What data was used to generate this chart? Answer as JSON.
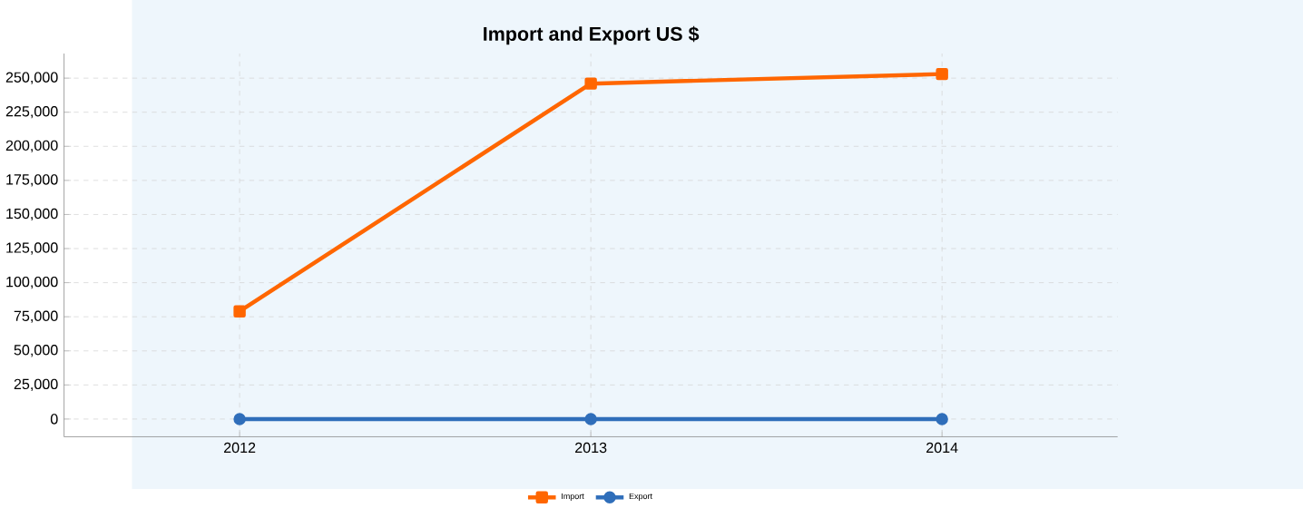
{
  "chart_data": {
    "type": "line",
    "title": "Import and Export  US $",
    "categories": [
      "2012",
      "2013",
      "2014"
    ],
    "series": [
      {
        "name": "Import",
        "color": "#ff6600",
        "marker": "square",
        "values": [
          79000,
          246000,
          253000
        ]
      },
      {
        "name": "Export",
        "color": "#2f6eba",
        "marker": "circle",
        "values": [
          0,
          0,
          0
        ]
      }
    ],
    "ylim": [
      -13000,
      268000
    ],
    "yticks": [
      {
        "value": 0,
        "label": "0"
      },
      {
        "value": 25000,
        "label": "25,000"
      },
      {
        "value": 50000,
        "label": "50,000"
      },
      {
        "value": 75000,
        "label": "75,000"
      },
      {
        "value": 100000,
        "label": "100,000"
      },
      {
        "value": 125000,
        "label": "125,000"
      },
      {
        "value": 150000,
        "label": "150,000"
      },
      {
        "value": 175000,
        "label": "175,000"
      },
      {
        "value": 200000,
        "label": "200,000"
      },
      {
        "value": 225000,
        "label": "225,000"
      },
      {
        "value": 250000,
        "label": "250,000"
      }
    ],
    "grid": true,
    "legend": "bottom",
    "line_style": "solid"
  }
}
